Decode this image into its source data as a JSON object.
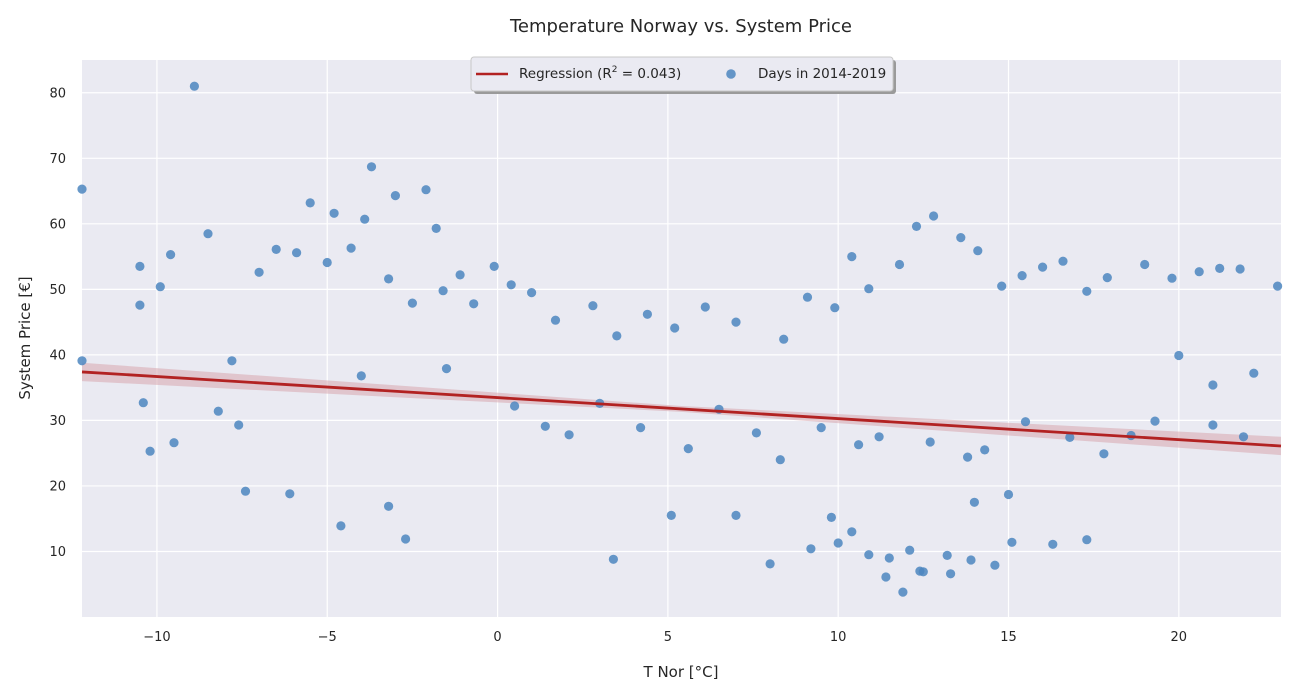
{
  "chart_data": {
    "type": "scatter",
    "title": "Temperature Norway vs. System Price",
    "xlabel": "T Nor [°C]",
    "ylabel": "System Price [€]",
    "xlim": [
      -12.2,
      23.0
    ],
    "ylim": [
      0,
      85
    ],
    "xticks": [
      -10,
      -5,
      0,
      5,
      10,
      15,
      20
    ],
    "yticks": [
      10,
      20,
      30,
      40,
      50,
      60,
      70,
      80
    ],
    "grid": true,
    "legend_position": "top-center",
    "legend": {
      "regression_label_prefix": "Regression (R",
      "regression_label_sup": "2",
      "regression_label_suffix": " = 0.043)",
      "points_label": "Days in 2014-2019"
    },
    "regression": {
      "x": [
        -12.2,
        23.0
      ],
      "y": [
        37.4,
        26.1
      ],
      "ci_halfwidth_edge": 1.4,
      "ci_halfwidth_center": 0.45
    },
    "series": [
      {
        "name": "Days in 2014-2019",
        "x": [
          -12.2,
          -8.9,
          -3.7,
          -2.1,
          -5.5,
          -4.8,
          -3.9,
          -3.0,
          -1.8,
          -8.5,
          -9.6,
          -10.5,
          -9.9,
          -10.5,
          -12.2,
          -7.0,
          -6.5,
          -5.9,
          -5.0,
          -4.3,
          -3.2,
          -2.5,
          -1.6,
          -1.1,
          -0.7,
          -0.1,
          0.4,
          1.0,
          1.7,
          2.8,
          3.5,
          4.4,
          5.2,
          6.1,
          7.0,
          8.4,
          9.1,
          9.9,
          10.4,
          10.9,
          11.8,
          12.3,
          12.8,
          13.6,
          14.1,
          14.8,
          15.4,
          16.0,
          16.6,
          17.3,
          17.9,
          19.0,
          19.8,
          20.6,
          21.2,
          21.8,
          22.9,
          20.0,
          21.0,
          22.2,
          -7.6,
          -7.4,
          -6.1,
          -4.6,
          -2.7,
          -3.2,
          5.1,
          9.2,
          11.4,
          11.9,
          12.4,
          13.2,
          13.9,
          14.6,
          10.0,
          10.9,
          15.1,
          16.3,
          17.3,
          8.0,
          7.0,
          3.4,
          12.5,
          13.3,
          11.5,
          12.1,
          10.4,
          9.8,
          14.0,
          15.0,
          -10.4,
          -10.2,
          -9.5,
          -8.2,
          -7.8,
          -4.0,
          -1.5,
          0.5,
          1.4,
          2.1,
          3.0,
          4.2,
          5.6,
          6.5,
          7.6,
          8.3,
          9.5,
          10.6,
          11.2,
          12.7,
          13.8,
          14.3,
          15.5,
          16.8,
          17.8,
          18.6,
          19.3,
          21.0,
          21.9
        ],
        "y": [
          65.3,
          81.0,
          68.7,
          65.2,
          63.2,
          61.6,
          60.7,
          64.3,
          59.3,
          58.5,
          55.3,
          53.5,
          50.4,
          47.6,
          39.1,
          52.6,
          56.1,
          55.6,
          54.1,
          56.3,
          51.6,
          47.9,
          49.8,
          52.2,
          47.8,
          53.5,
          50.7,
          49.5,
          45.3,
          47.5,
          42.9,
          46.2,
          44.1,
          47.3,
          45.0,
          42.4,
          48.8,
          47.2,
          55.0,
          50.1,
          53.8,
          59.6,
          61.2,
          57.9,
          55.9,
          50.5,
          52.1,
          53.4,
          54.3,
          49.7,
          51.8,
          53.8,
          51.7,
          52.7,
          53.2,
          53.1,
          50.5,
          39.9,
          35.4,
          37.2,
          29.3,
          19.2,
          18.8,
          13.9,
          11.9,
          16.9,
          15.5,
          10.4,
          6.1,
          3.8,
          7.0,
          9.4,
          8.7,
          7.9,
          11.3,
          9.5,
          11.4,
          11.1,
          11.8,
          8.1,
          15.5,
          8.8,
          6.9,
          6.6,
          9.0,
          10.2,
          13.0,
          15.2,
          17.5,
          18.7,
          32.7,
          25.3,
          26.6,
          31.4,
          39.1,
          36.8,
          37.9,
          32.2,
          29.1,
          27.8,
          32.6,
          28.9,
          25.7,
          31.7,
          28.1,
          24.0,
          28.9,
          26.3,
          27.5,
          26.7,
          24.4,
          25.5,
          29.8,
          27.4,
          24.9,
          27.7,
          29.9,
          29.3,
          27.5
        ]
      }
    ]
  }
}
